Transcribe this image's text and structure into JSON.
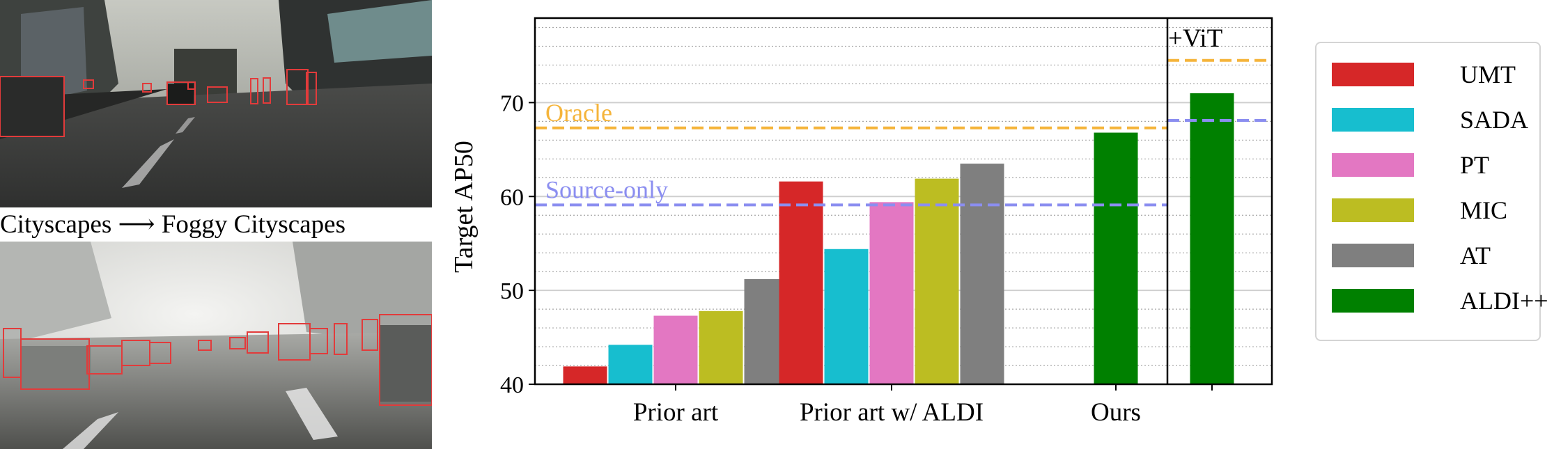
{
  "photos": {
    "caption": "Cityscapes ⟶ Foggy Cityscapes",
    "top_scene": "Cityscapes",
    "bottom_scene": "Foggy Cityscapes"
  },
  "chart_data": {
    "type": "bar",
    "title": "",
    "xlabel": "",
    "ylabel": "Target AP50",
    "ylim": [
      40,
      79
    ],
    "yticks": [
      40,
      50,
      60,
      70
    ],
    "grid": "horizontal major and minor",
    "groups": [
      {
        "label": "Prior art",
        "bars": [
          {
            "method": "UMT",
            "value": 41.9
          },
          {
            "method": "SADA",
            "value": 44.2
          },
          {
            "method": "PT",
            "value": 47.3
          },
          {
            "method": "MIC",
            "value": 47.8
          },
          {
            "method": "AT",
            "value": 51.2
          }
        ]
      },
      {
        "label": "Prior art w/ ALDI",
        "bars": [
          {
            "method": "UMT",
            "value": 61.6
          },
          {
            "method": "SADA",
            "value": 54.4
          },
          {
            "method": "PT",
            "value": 59.4
          },
          {
            "method": "MIC",
            "value": 61.9
          },
          {
            "method": "AT",
            "value": 63.5
          }
        ]
      },
      {
        "label": "Ours",
        "bars": [
          {
            "method": "ALDI++",
            "value": 66.8
          }
        ]
      },
      {
        "label": "",
        "bars": [
          {
            "method": "ALDI++",
            "value": 71.0
          }
        ]
      }
    ],
    "reference_lines": [
      {
        "name": "Oracle",
        "value": 67.3,
        "color": "#f5b43a",
        "section": "main"
      },
      {
        "name": "Source-only",
        "value": 59.1,
        "color": "#8b8ef0",
        "section": "main"
      },
      {
        "name": "",
        "value": 74.5,
        "color": "#f5b43a",
        "section": "vit"
      },
      {
        "name": "",
        "value": 68.1,
        "color": "#8b8ef0",
        "section": "vit"
      }
    ],
    "vit_section_label": "+ViT",
    "legend": {
      "placement": "right",
      "entries": [
        {
          "name": "UMT",
          "color": "#d62728"
        },
        {
          "name": "SADA",
          "color": "#17becf"
        },
        {
          "name": "PT",
          "color": "#e377c2"
        },
        {
          "name": "MIC",
          "color": "#bcbd22"
        },
        {
          "name": "AT",
          "color": "#7f7f7f"
        },
        {
          "name": "ALDI++",
          "color": "#008000"
        }
      ]
    }
  }
}
